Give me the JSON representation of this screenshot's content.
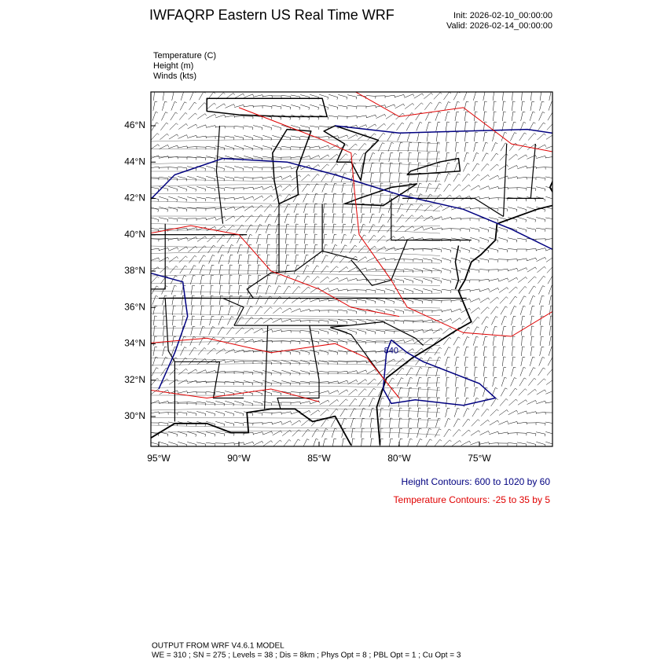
{
  "header": {
    "title": "IWFAQRP Eastern US Real Time WRF",
    "init": "Init: 2026-02-10_00:00:00",
    "valid": "Valid: 2026-02-14_00:00:00"
  },
  "fields": [
    "Temperature   (C)",
    "Height   (m)",
    "Winds   (kts)"
  ],
  "map": {
    "lat_labels": [
      "46°N",
      "44°N",
      "42°N",
      "40°N",
      "38°N",
      "36°N",
      "34°N",
      "32°N",
      "30°N"
    ],
    "lon_labels": [
      "95°W",
      "90°W",
      "85°W",
      "80°W",
      "75°W"
    ],
    "contour_label": "840"
  },
  "notes": {
    "height": "Height Contours: 600 to 1020 by 60",
    "temperature": "Temperature Contours: -25 to 35 by 5"
  },
  "footer": [
    "OUTPUT FROM WRF V4.6.1 MODEL",
    "WE = 310 ; SN = 275 ; Levels = 38 ; Dis = 8km ; Phys Opt = 8 ; PBL Opt = 1 ; Cu Opt = 3"
  ]
}
